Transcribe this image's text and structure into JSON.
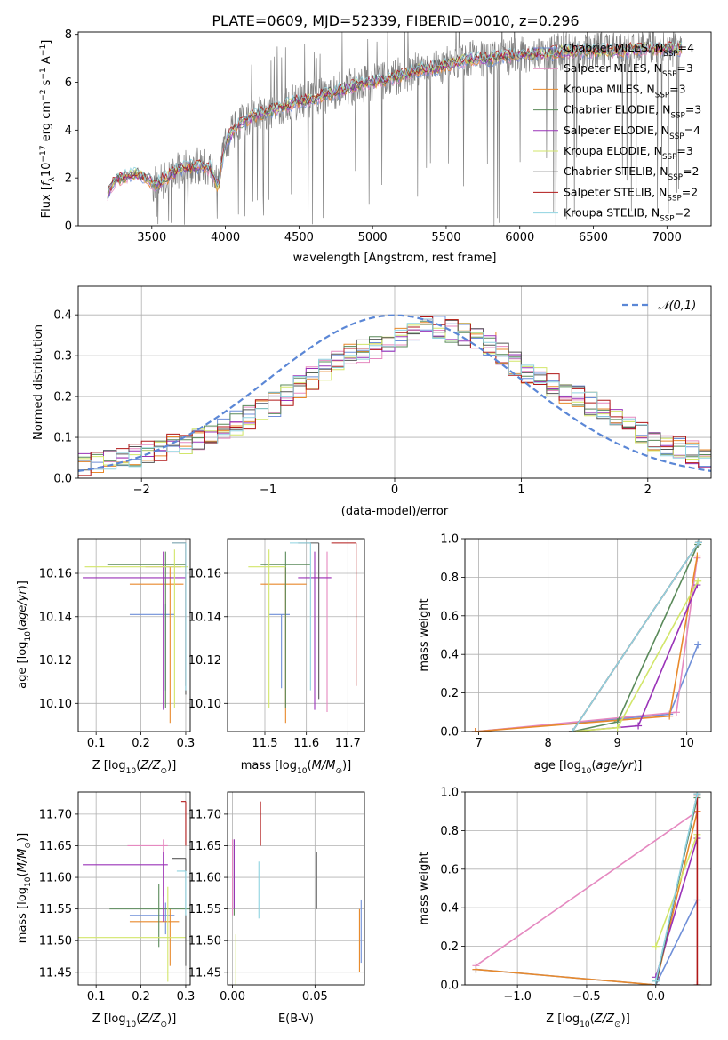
{
  "title": "PLATE=0609, MJD=52339, FIBERID=0010, z=0.296",
  "colors": {
    "chabrier_miles": "#6f8fd8",
    "salpeter_miles": "#e589c0",
    "kroupa_miles": "#e8892b",
    "chabrier_elodie": "#5a8a5a",
    "salpeter_elodie": "#9a33b8",
    "kroupa_elodie": "#d2e66a",
    "chabrier_stelib": "#555555",
    "salpeter_stelib": "#b01818",
    "kroupa_stelib": "#8fd3e0",
    "spectrum_gray": "#808080",
    "normal_curve": "#5b87d6",
    "grid": "#b0b0b0"
  },
  "chart_data": [
    {
      "id": "spectrum",
      "type": "line",
      "xlabel": "wavelength [Angstrom, rest frame]",
      "ylabel": "Flux [f_λ10^-17 erg cm^-2 s^-1 A^-1]",
      "xlim": [
        3000,
        7300
      ],
      "ylim": [
        0,
        8.1
      ],
      "xticks": [
        3500,
        4000,
        4500,
        5000,
        5500,
        6000,
        6500,
        7000
      ],
      "yticks": [
        0,
        2,
        4,
        6,
        8
      ],
      "grid": false,
      "legend_position": "top-right",
      "legend": [
        {
          "label": "Chabrier MILES, N_SSP=4",
          "color_key": "chabrier_miles"
        },
        {
          "label": "Salpeter MILES, N_SSP=3",
          "color_key": "salpeter_miles"
        },
        {
          "label": "Kroupa MILES, N_SSP=3",
          "color_key": "kroupa_miles"
        },
        {
          "label": "Chabrier ELODIE, N_SSP=3",
          "color_key": "chabrier_elodie"
        },
        {
          "label": "Salpeter ELODIE, N_SSP=4",
          "color_key": "salpeter_elodie"
        },
        {
          "label": "Kroupa ELODIE, N_SSP=3",
          "color_key": "kroupa_elodie"
        },
        {
          "label": "Chabrier STELIB, N_SSP=2",
          "color_key": "chabrier_stelib"
        },
        {
          "label": "Salpeter STELIB, N_SSP=2",
          "color_key": "salpeter_stelib"
        },
        {
          "label": "Kroupa STELIB, N_SSP=2",
          "color_key": "kroupa_stelib"
        }
      ],
      "model_envelope": {
        "x": [
          3200,
          3250,
          3300,
          3400,
          3480,
          3520,
          3600,
          3700,
          3800,
          3900,
          3950,
          4000,
          4100,
          4200,
          4300,
          4400,
          4500,
          4600,
          4700,
          4800,
          4900,
          5000,
          5100,
          5200,
          5300,
          5400,
          5500,
          5600,
          5700,
          5800,
          5900,
          6000,
          6100,
          6200,
          6300,
          6400,
          6500,
          6600,
          6700,
          6800,
          6900,
          7000,
          7100
        ],
        "y": [
          1.3,
          1.9,
          2.0,
          2.2,
          1.9,
          1.7,
          2.0,
          2.4,
          2.5,
          2.4,
          1.6,
          3.5,
          4.3,
          4.6,
          4.8,
          5.0,
          5.2,
          5.3,
          5.5,
          5.7,
          5.9,
          6.0,
          6.1,
          6.3,
          6.5,
          6.6,
          6.7,
          6.9,
          7.0,
          7.0,
          7.1,
          7.1,
          7.2,
          7.2,
          7.3,
          7.3,
          7.3,
          7.3,
          7.3,
          7.4,
          7.4,
          7.4,
          7.4
        ]
      }
    },
    {
      "id": "residuals",
      "type": "histogram",
      "xlabel": "(data-model)/error",
      "ylabel": "Normed distribution",
      "xlim": [
        -2.5,
        2.5
      ],
      "ylim": [
        0,
        0.47
      ],
      "xticks": [
        -2,
        -1,
        0,
        1,
        2
      ],
      "yticks": [
        0.0,
        0.1,
        0.2,
        0.3,
        0.4
      ],
      "grid": true,
      "legend_position": "top-right",
      "legend": [
        {
          "label": "𝒩(0,1)",
          "color_key": "normal_curve",
          "style": "dashed"
        }
      ],
      "bin_width": 0.1,
      "mean_profile": {
        "x": [
          -2.5,
          -2.0,
          -1.5,
          -1.0,
          -0.5,
          0.0,
          0.3,
          0.5,
          0.7,
          1.0,
          1.5,
          2.0,
          2.5
        ],
        "y": [
          0.03,
          0.06,
          0.1,
          0.17,
          0.28,
          0.34,
          0.37,
          0.36,
          0.34,
          0.27,
          0.19,
          0.1,
          0.05
        ]
      }
    },
    {
      "id": "age_vs_Z",
      "type": "errorbar",
      "xlabel": "Z [log10(Z/Z☉)]",
      "ylabel": "age  [log10(age/yr)]",
      "xlim": [
        0.06,
        0.31
      ],
      "ylim": [
        10.087,
        10.176
      ],
      "xticks": [
        0.1,
        0.2,
        0.3
      ],
      "yticks": [
        10.1,
        10.12,
        10.14,
        10.16
      ],
      "grid": true,
      "points": [
        {
          "color_key": "chabrier_miles",
          "x": 0.255,
          "y": 10.141,
          "xerr": [
            0.08,
            0.02
          ],
          "yerr": [
            0.035,
            0.005
          ]
        },
        {
          "color_key": "salpeter_miles",
          "x": 0.25,
          "y": 10.163,
          "xerr": [
            0.04,
            0.04
          ],
          "yerr": [
            0.065,
            0.007
          ]
        },
        {
          "color_key": "kroupa_miles",
          "x": 0.265,
          "y": 10.155,
          "xerr": [
            0.09,
            0.03
          ],
          "yerr": [
            0.064,
            0.008
          ]
        },
        {
          "color_key": "chabrier_elodie",
          "x": 0.255,
          "y": 10.164,
          "xerr": [
            0.13,
            0.045
          ],
          "yerr": [
            0.066,
            0.006
          ]
        },
        {
          "color_key": "salpeter_elodie",
          "x": 0.25,
          "y": 10.158,
          "xerr": [
            0.18,
            0.05
          ],
          "yerr": [
            0.061,
            0.012
          ]
        },
        {
          "color_key": "kroupa_elodie",
          "x": 0.275,
          "y": 10.163,
          "xerr": [
            0.2,
            0.03
          ],
          "yerr": [
            0.065,
            0.008
          ]
        },
        {
          "color_key": "chabrier_stelib",
          "x": 0.3,
          "y": 10.174,
          "xerr": [
            0.03,
            0.0
          ],
          "yerr": [
            0.07,
            0.0
          ]
        },
        {
          "color_key": "salpeter_stelib",
          "x": 0.3,
          "y": 10.174,
          "xerr": [
            0.03,
            0.0
          ],
          "yerr": [
            0.066,
            0.0
          ]
        },
        {
          "color_key": "kroupa_stelib",
          "x": 0.3,
          "y": 10.174,
          "xerr": [
            0.03,
            0.0
          ],
          "yerr": [
            0.068,
            0.0
          ]
        }
      ]
    },
    {
      "id": "age_vs_mass",
      "type": "errorbar",
      "xlabel": "mass [log10(M/M☉)]",
      "ylabel": "",
      "xlim": [
        11.41,
        11.74
      ],
      "ylim": [
        10.087,
        10.176
      ],
      "xticks": [
        11.5,
        11.6,
        11.7
      ],
      "yticks": [
        10.1,
        10.12,
        10.14,
        10.16
      ],
      "grid": true,
      "points": [
        {
          "color_key": "chabrier_miles",
          "x": 11.54,
          "y": 10.141,
          "xerr": [
            0.03,
            0.02
          ],
          "yerr": [
            0.034,
            0.0
          ]
        },
        {
          "color_key": "salpeter_miles",
          "x": 11.65,
          "y": 10.158,
          "xerr": [
            0.04,
            0.01
          ],
          "yerr": [
            0.062,
            0.012
          ]
        },
        {
          "color_key": "kroupa_miles",
          "x": 11.55,
          "y": 10.155,
          "xerr": [
            0.06,
            0.05
          ],
          "yerr": [
            0.064,
            0.008
          ]
        },
        {
          "color_key": "chabrier_elodie",
          "x": 11.55,
          "y": 10.164,
          "xerr": [
            0.06,
            0.06
          ],
          "yerr": [
            0.066,
            0.006
          ]
        },
        {
          "color_key": "salpeter_elodie",
          "x": 11.62,
          "y": 10.158,
          "xerr": [
            0.04,
            0.04
          ],
          "yerr": [
            0.061,
            0.012
          ]
        },
        {
          "color_key": "kroupa_elodie",
          "x": 11.51,
          "y": 10.163,
          "xerr": [
            0.05,
            0.04
          ],
          "yerr": [
            0.065,
            0.008
          ]
        },
        {
          "color_key": "chabrier_stelib",
          "x": 11.63,
          "y": 10.174,
          "xerr": [
            0.05,
            0.0
          ],
          "yerr": [
            0.072,
            0.0
          ]
        },
        {
          "color_key": "salpeter_stelib",
          "x": 11.72,
          "y": 10.174,
          "xerr": [
            0.06,
            0.0
          ],
          "yerr": [
            0.066,
            0.0
          ]
        },
        {
          "color_key": "kroupa_stelib",
          "x": 11.61,
          "y": 10.174,
          "xerr": [
            0.05,
            0.0
          ],
          "yerr": [
            0.068,
            0.0
          ]
        }
      ]
    },
    {
      "id": "weight_vs_age",
      "type": "line",
      "xlabel": "age  [log10(age/yr)]",
      "ylabel": "mass weight",
      "xlim": [
        6.8,
        10.35
      ],
      "ylim": [
        0,
        1.0
      ],
      "xticks": [
        7,
        8,
        9,
        10
      ],
      "yticks": [
        0.0,
        0.2,
        0.4,
        0.6,
        0.8,
        1.0
      ],
      "grid": true,
      "series": [
        {
          "color_key": "chabrier_miles",
          "x": [
            6.95,
            9.75,
            10.16
          ],
          "y": [
            0.0,
            0.09,
            0.45
          ]
        },
        {
          "color_key": "salpeter_miles",
          "x": [
            6.95,
            9.85,
            10.15
          ],
          "y": [
            0.0,
            0.1,
            0.9
          ]
        },
        {
          "color_key": "kroupa_miles",
          "x": [
            6.95,
            9.75,
            10.15
          ],
          "y": [
            0.0,
            0.08,
            0.91
          ]
        },
        {
          "color_key": "chabrier_elodie",
          "x": [
            8.35,
            9.0,
            10.16
          ],
          "y": [
            0.0,
            0.05,
            0.97
          ]
        },
        {
          "color_key": "salpeter_elodie",
          "x": [
            8.35,
            9.3,
            10.15
          ],
          "y": [
            0.0,
            0.03,
            0.76
          ]
        },
        {
          "color_key": "kroupa_elodie",
          "x": [
            8.35,
            9.0,
            10.16
          ],
          "y": [
            0.0,
            0.02,
            0.78
          ]
        },
        {
          "color_key": "chabrier_stelib",
          "x": [
            8.35,
            10.17
          ],
          "y": [
            0.0,
            0.98
          ]
        },
        {
          "color_key": "salpeter_stelib",
          "x": [
            8.35,
            10.17
          ],
          "y": [
            0.0,
            0.98
          ]
        },
        {
          "color_key": "kroupa_stelib",
          "x": [
            8.35,
            10.17
          ],
          "y": [
            0.0,
            0.98
          ]
        }
      ]
    },
    {
      "id": "mass_vs_Z",
      "type": "errorbar",
      "xlabel": "Z [log10(Z/Z☉)]",
      "ylabel": "mass [log10(M/M☉)]",
      "xlim": [
        0.06,
        0.31
      ],
      "ylim": [
        11.43,
        11.735
      ],
      "xticks": [
        0.1,
        0.2,
        0.3
      ],
      "yticks": [
        11.45,
        11.5,
        11.55,
        11.6,
        11.65,
        11.7
      ],
      "grid": true,
      "points": [
        {
          "color_key": "chabrier_miles",
          "x": 0.255,
          "y": 11.54,
          "xerr": [
            0.08,
            0.02
          ],
          "yerr": [
            0.03,
            0.02
          ]
        },
        {
          "color_key": "salpeter_miles",
          "x": 0.25,
          "y": 11.65,
          "xerr": [
            0.08,
            0.01
          ],
          "yerr": [
            0.08,
            0.01
          ]
        },
        {
          "color_key": "kroupa_miles",
          "x": 0.265,
          "y": 11.53,
          "xerr": [
            0.09,
            0.02
          ],
          "yerr": [
            0.07,
            0.02
          ]
        },
        {
          "color_key": "chabrier_elodie",
          "x": 0.24,
          "y": 11.55,
          "xerr": [
            0.11,
            0.07
          ],
          "yerr": [
            0.06,
            0.04
          ]
        },
        {
          "color_key": "salpeter_elodie",
          "x": 0.25,
          "y": 11.62,
          "xerr": [
            0.18,
            0.01
          ],
          "yerr": [
            0.09,
            0.02
          ]
        },
        {
          "color_key": "kroupa_elodie",
          "x": 0.26,
          "y": 11.505,
          "xerr": [
            0.2,
            0.04
          ],
          "yerr": [
            0.07,
            0.08
          ]
        },
        {
          "color_key": "chabrier_stelib",
          "x": 0.3,
          "y": 11.63,
          "xerr": [
            0.03,
            0.0
          ],
          "yerr": [
            0.17,
            0.0
          ]
        },
        {
          "color_key": "salpeter_stelib",
          "x": 0.3,
          "y": 11.72,
          "xerr": [
            0.01,
            0.0
          ],
          "yerr": [
            0.07,
            0.0
          ]
        },
        {
          "color_key": "kroupa_stelib",
          "x": 0.3,
          "y": 11.61,
          "xerr": [
            0.02,
            0.0
          ],
          "yerr": [
            0.07,
            0.0
          ]
        }
      ]
    },
    {
      "id": "mass_vs_ebv",
      "type": "errorbar",
      "xlabel": "E(B-V)",
      "ylabel": "",
      "xlim": [
        -0.003,
        0.08
      ],
      "ylim": [
        11.43,
        11.735
      ],
      "xticks": [
        0.0,
        0.05
      ],
      "xticklabels": [
        "0.00",
        "0.05"
      ],
      "yticks": [
        11.45,
        11.5,
        11.55,
        11.6,
        11.65,
        11.7
      ],
      "grid": true,
      "points": [
        {
          "color_key": "chabrier_miles",
          "x": 0.078,
          "y": 11.525,
          "yerr": [
            0.06,
            0.04
          ]
        },
        {
          "color_key": "salpeter_miles",
          "x": 0.0,
          "y": 11.61,
          "yerr": [
            0.07,
            0.05
          ]
        },
        {
          "color_key": "kroupa_miles",
          "x": 0.077,
          "y": 11.51,
          "yerr": [
            0.06,
            0.04
          ]
        },
        {
          "color_key": "chabrier_elodie",
          "x": 0.001,
          "y": 11.59,
          "yerr": [
            0.05,
            0.07
          ]
        },
        {
          "color_key": "salpeter_elodie",
          "x": 0.001,
          "y": 11.6,
          "yerr": [
            0.05,
            0.06
          ]
        },
        {
          "color_key": "kroupa_elodie",
          "x": 0.002,
          "y": 11.47,
          "yerr": [
            0.04,
            0.04
          ]
        },
        {
          "color_key": "chabrier_stelib",
          "x": 0.051,
          "y": 11.595,
          "yerr": [
            0.045,
            0.045
          ]
        },
        {
          "color_key": "salpeter_stelib",
          "x": 0.017,
          "y": 11.685,
          "yerr": [
            0.035,
            0.035
          ]
        },
        {
          "color_key": "kroupa_stelib",
          "x": 0.016,
          "y": 11.58,
          "yerr": [
            0.045,
            0.045
          ]
        }
      ]
    },
    {
      "id": "weight_vs_Z",
      "type": "line",
      "xlabel": "Z [log10(Z/Z☉)]",
      "ylabel": "mass weight",
      "xlim": [
        -1.38,
        0.4
      ],
      "ylim": [
        0,
        1.0
      ],
      "xticks": [
        -1.0,
        -0.5,
        0.0
      ],
      "xticklabels": [
        "−1.0",
        "−0.5",
        "0.0"
      ],
      "yticks": [
        0.0,
        0.2,
        0.4,
        0.6,
        0.8,
        1.0
      ],
      "grid": true,
      "series": [
        {
          "color_key": "chabrier_miles",
          "x": [
            -1.3,
            0.0,
            0.3
          ],
          "y": [
            0.08,
            0.0,
            0.44
          ]
        },
        {
          "color_key": "salpeter_miles",
          "x": [
            -1.3,
            0.3
          ],
          "y": [
            0.1,
            0.9
          ]
        },
        {
          "color_key": "kroupa_miles",
          "x": [
            -1.3,
            0.0,
            0.3
          ],
          "y": [
            0.08,
            0.0,
            0.9
          ]
        },
        {
          "color_key": "chabrier_elodie",
          "x": [
            0.0,
            0.3
          ],
          "y": [
            0.02,
            0.97
          ]
        },
        {
          "color_key": "salpeter_elodie",
          "x": [
            0.0,
            0.0,
            0.3
          ],
          "y": [
            0.0,
            0.04,
            0.76
          ]
        },
        {
          "color_key": "kroupa_elodie",
          "x": [
            0.0,
            0.3
          ],
          "y": [
            0.2,
            0.78
          ]
        },
        {
          "color_key": "chabrier_stelib",
          "x": [
            0.0,
            0.3
          ],
          "y": [
            0.0,
            0.99
          ]
        },
        {
          "color_key": "salpeter_stelib",
          "x": [
            0.3,
            0.3
          ],
          "y": [
            0.0,
            0.98
          ]
        },
        {
          "color_key": "kroupa_stelib",
          "x": [
            0.0,
            0.3
          ],
          "y": [
            0.02,
            0.99
          ]
        }
      ]
    }
  ]
}
